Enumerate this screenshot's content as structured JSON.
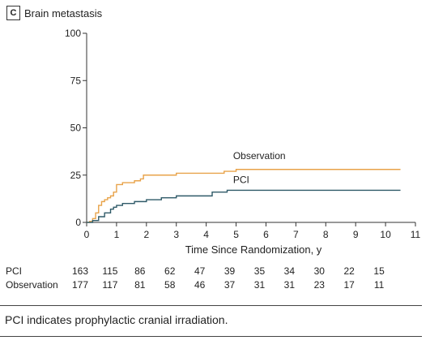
{
  "panel": {
    "letter": "C",
    "title": "Brain metastasis"
  },
  "chart_data": {
    "type": "line",
    "xlabel": "Time Since Randomization, y",
    "ylabel": "",
    "xlim": [
      0,
      11
    ],
    "ylim": [
      0,
      100
    ],
    "xticks": [
      "0",
      "1",
      "2",
      "3",
      "4",
      "5",
      "6",
      "7",
      "8",
      "9",
      "10",
      "11"
    ],
    "yticks": [
      "0",
      "25",
      "50",
      "75",
      "100"
    ],
    "step": true,
    "series": [
      {
        "name": "Observation",
        "color": "#e8a34a",
        "points": [
          [
            0,
            0
          ],
          [
            0.1,
            0.5
          ],
          [
            0.2,
            2
          ],
          [
            0.3,
            5
          ],
          [
            0.4,
            9
          ],
          [
            0.5,
            11
          ],
          [
            0.6,
            12
          ],
          [
            0.7,
            13
          ],
          [
            0.8,
            14
          ],
          [
            0.9,
            16
          ],
          [
            1.0,
            20
          ],
          [
            1.2,
            21
          ],
          [
            1.6,
            22
          ],
          [
            1.8,
            23
          ],
          [
            1.9,
            25
          ],
          [
            2.2,
            25
          ],
          [
            3.0,
            26
          ],
          [
            3.5,
            26
          ],
          [
            4.6,
            27
          ],
          [
            4.8,
            27
          ],
          [
            5.0,
            28
          ],
          [
            10.5,
            28
          ]
        ]
      },
      {
        "name": "PCI",
        "color": "#2f5a68",
        "points": [
          [
            0,
            0
          ],
          [
            0.2,
            1
          ],
          [
            0.4,
            3
          ],
          [
            0.6,
            5
          ],
          [
            0.8,
            7
          ],
          [
            0.9,
            8
          ],
          [
            1.0,
            9
          ],
          [
            1.2,
            10
          ],
          [
            1.6,
            11
          ],
          [
            2.0,
            12
          ],
          [
            2.5,
            13
          ],
          [
            3.0,
            14
          ],
          [
            3.4,
            14
          ],
          [
            4.2,
            16
          ],
          [
            4.6,
            16
          ],
          [
            4.7,
            17
          ],
          [
            10.5,
            17
          ]
        ]
      }
    ],
    "risk_table": {
      "times": [
        0,
        1,
        2,
        3,
        4,
        5,
        6,
        7,
        8,
        9,
        10
      ],
      "rows": [
        {
          "label": "PCI",
          "values": [
            163,
            115,
            86,
            62,
            47,
            39,
            35,
            34,
            30,
            22,
            15
          ]
        },
        {
          "label": "Observation",
          "values": [
            177,
            117,
            81,
            58,
            46,
            37,
            31,
            31,
            23,
            17,
            11
          ]
        }
      ]
    }
  },
  "footnote": "PCI indicates prophylactic cranial irradiation."
}
